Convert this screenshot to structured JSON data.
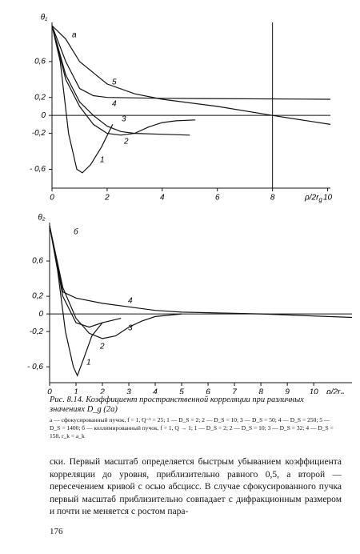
{
  "chart_data": [
    {
      "type": "line",
      "panel": "а",
      "ylabel": "θ₁",
      "xlabel": "ρ/2r",
      "xlabel_sub": "g",
      "xlim": [
        0,
        10.1
      ],
      "ylim": [
        -0.81,
        1
      ],
      "xticks": [
        0,
        2,
        4,
        6,
        8,
        10
      ],
      "yticks": [
        {
          "value": 0.6,
          "label": "0,6"
        },
        {
          "value": 0.2,
          "label": "0,2"
        },
        0,
        {
          "value": -0.2,
          "label": "-0,2"
        },
        {
          "value": -0.6,
          "label": "- 0,6"
        }
      ],
      "vlines": [
        8
      ],
      "grid": false,
      "series": [
        {
          "name": "1",
          "color": "#111",
          "x": [
            0,
            0.3,
            0.6,
            0.9,
            1.1,
            1.4,
            1.8,
            2.2
          ],
          "values": [
            1,
            0.6,
            -0.2,
            -0.6,
            -0.64,
            -0.55,
            -0.35,
            -0.1
          ]
        },
        {
          "name": "2",
          "color": "#111",
          "x": [
            0,
            0.5,
            1,
            1.5,
            2,
            2.5,
            3,
            3.5,
            4,
            4.5,
            5.2
          ],
          "values": [
            1,
            0.4,
            0.1,
            -0.1,
            -0.2,
            -0.22,
            -0.2,
            -0.13,
            -0.08,
            -0.06,
            -0.05
          ]
        },
        {
          "name": "3",
          "color": "#111",
          "x": [
            0,
            0.5,
            1,
            1.5,
            2,
            2.5,
            3,
            4,
            5
          ],
          "values": [
            1,
            0.45,
            0.15,
            0,
            -0.12,
            -0.18,
            -0.2,
            -0.21,
            -0.22
          ]
        },
        {
          "name": "4",
          "color": "#111",
          "x": [
            0,
            0.5,
            1,
            1.5,
            2,
            4,
            10.1
          ],
          "values": [
            1,
            0.6,
            0.3,
            0.22,
            0.2,
            0.19,
            0.18
          ]
        },
        {
          "name": "5",
          "color": "#111",
          "x": [
            0,
            0.5,
            1,
            2,
            3,
            4,
            6,
            8,
            10.1
          ],
          "values": [
            1,
            0.85,
            0.6,
            0.35,
            0.24,
            0.18,
            0.1,
            0,
            -0.1
          ]
        }
      ]
    },
    {
      "type": "line",
      "panel": "б",
      "ylabel": "θ₂",
      "xlabel": "ρ/2r",
      "xlabel_sub": "g",
      "xlim": [
        0,
        11.45
      ],
      "ylim": [
        -0.78,
        1
      ],
      "xticks": [
        0,
        1,
        2,
        3,
        4,
        5,
        6,
        7,
        8,
        9,
        10
      ],
      "yticks": [
        {
          "value": 0.6,
          "label": "0,6"
        },
        {
          "value": 0.2,
          "label": "0,2"
        },
        0,
        {
          "value": -0.2,
          "label": "-0,2"
        },
        {
          "value": -0.6,
          "label": "- 0,6"
        }
      ],
      "vlines": [],
      "grid": false,
      "series": [
        {
          "name": "1",
          "color": "#111",
          "x": [
            0,
            0.3,
            0.6,
            0.9,
            1.05,
            1.3,
            1.6,
            2
          ],
          "values": [
            1,
            0.5,
            -0.2,
            -0.6,
            -0.7,
            -0.5,
            -0.25,
            -0.1
          ]
        },
        {
          "name": "2",
          "color": "#111",
          "x": [
            0,
            0.5,
            1,
            1.5,
            2,
            2.5,
            3,
            3.5,
            4,
            5
          ],
          "values": [
            1,
            0.3,
            -0.05,
            -0.22,
            -0.28,
            -0.25,
            -0.15,
            -0.08,
            -0.03,
            0
          ]
        },
        {
          "name": "3",
          "color": "#111",
          "x": [
            0,
            0.5,
            1,
            1.5,
            2,
            2.7
          ],
          "values": [
            1,
            0.2,
            -0.1,
            -0.15,
            -0.1,
            -0.05
          ]
        },
        {
          "name": "4",
          "color": "#111",
          "x": [
            0,
            0.5,
            1,
            2,
            3,
            4,
            5,
            8,
            11.45
          ],
          "values": [
            1,
            0.25,
            0.18,
            0.12,
            0.08,
            0.04,
            0.02,
            0,
            -0.04
          ]
        }
      ]
    }
  ],
  "caption": {
    "title": "Рис. 8.14. Коэффициент пространственной корреляции при различных значениях D_g (2a)",
    "legend": "а — сфокусированный пучок, f = 1, Q⁻¹ = 25; 1 — D_S = 2; 2 — D_S = 10; 3 — D_S = 50; 4 — D_S = 250; 5 — D_S = 1400; б — коллимированный пучок, f = 1, Q → 1; 1 — D_S = 2; 2 — D_S = 10; 3 — D_S = 32; 4 — D_S = 158, r_k = a_k"
  },
  "body": "ски. Первый масштаб определяется быстрым убыванием коэффициента корреляции до уровня, приблизительно равного 0,5, а второй — пересечением кривой с осью абсцисс. В случае сфокусированного пучка первый масштаб приблизительно совпадает с дифракционным размером и почти не меняется с ростом пара-",
  "page_number": "176"
}
